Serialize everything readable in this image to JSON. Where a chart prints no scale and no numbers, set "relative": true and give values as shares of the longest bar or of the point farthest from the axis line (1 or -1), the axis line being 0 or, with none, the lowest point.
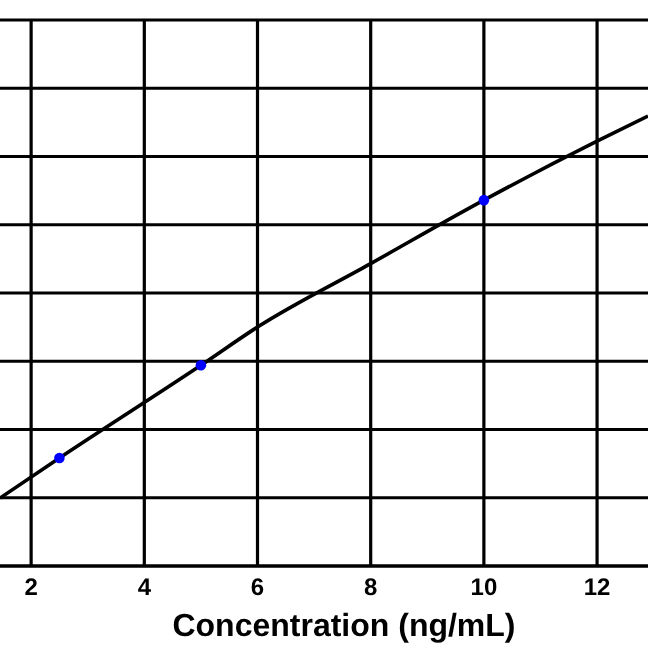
{
  "chart_data": {
    "type": "line",
    "xlabel": "Concentration (ng/mL)",
    "relative": true,
    "xlim": [
      1.45,
      12.9
    ],
    "xticks": [
      2,
      4,
      6,
      8,
      10,
      12
    ],
    "grid": true,
    "series": [
      {
        "color": "#000000",
        "marker": "none",
        "x": [
          1.45,
          2.5,
          5,
          6,
          8,
          10,
          12,
          12.9
        ],
        "values": [
          0.151,
          0.24,
          0.446,
          0.531,
          0.672,
          0.813,
          0.944,
          1
        ]
      },
      {
        "type": "scatter",
        "color": "#0000ff",
        "marker": "circle",
        "x": [
          2.5,
          5,
          10
        ],
        "values": [
          0.24,
          0.446,
          0.813
        ]
      }
    ]
  }
}
